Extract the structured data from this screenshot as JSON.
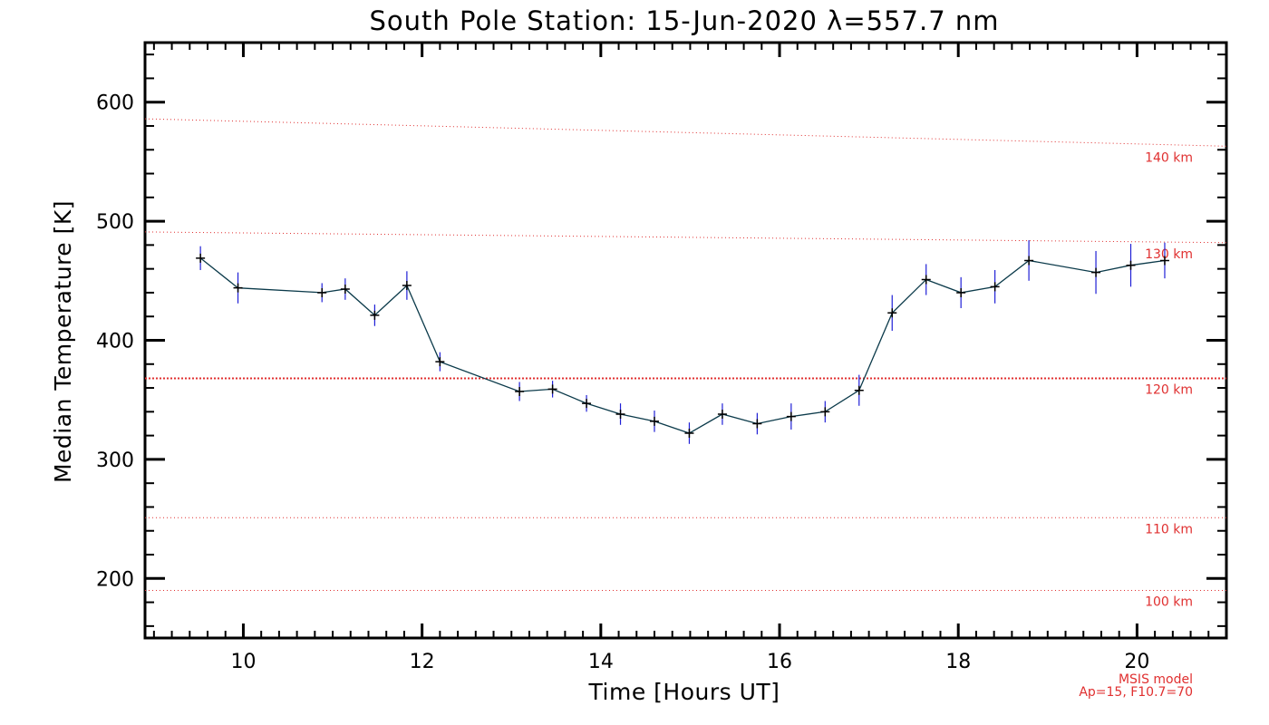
{
  "chart_data": {
    "type": "line",
    "title": "South Pole Station: 15-Jun-2020 λ=557.7 nm",
    "xlabel": "Time [Hours UT]",
    "ylabel": "Median Temperature [K]",
    "xlim": [
      8.9,
      21.0
    ],
    "ylim": [
      150,
      650
    ],
    "xticks": [
      10,
      12,
      14,
      16,
      18,
      20
    ],
    "yticks": [
      200,
      300,
      400,
      500,
      600
    ],
    "grid": false,
    "series": [
      {
        "x": [
          9.52,
          9.94,
          10.88,
          11.14,
          11.47,
          11.83,
          12.2,
          13.09,
          13.46,
          13.84,
          14.22,
          14.6,
          14.99,
          15.36,
          15.75,
          16.13,
          16.51,
          16.89,
          17.26,
          17.64,
          18.03,
          18.41,
          18.79,
          19.54,
          19.93,
          20.31
        ],
        "y": [
          469,
          444,
          440,
          443,
          421,
          446,
          382,
          357,
          359,
          347,
          338,
          332,
          322,
          338,
          330,
          336,
          340,
          358,
          423,
          451,
          440,
          445,
          467,
          457,
          463,
          467
        ],
        "err": [
          10,
          13,
          8,
          9,
          9,
          12,
          8,
          8,
          7,
          7,
          9,
          9,
          9,
          9,
          9,
          11,
          9,
          13,
          15,
          13,
          13,
          14,
          17,
          18,
          18,
          15
        ]
      }
    ],
    "reference_lines": [
      {
        "label": "140 km",
        "y_start": 586,
        "y_end": 563,
        "emphasized": false
      },
      {
        "label": "130 km",
        "y_start": 491,
        "y_end": 482,
        "emphasized": false
      },
      {
        "label": "120 km",
        "y_start": 368,
        "y_end": 368,
        "emphasized": true
      },
      {
        "label": "110 km",
        "y_start": 251,
        "y_end": 251,
        "emphasized": false
      },
      {
        "label": "100 km",
        "y_start": 190,
        "y_end": 190,
        "emphasized": false
      }
    ],
    "annotations": [
      "MSIS model",
      "Ap=15, F10.7=70"
    ],
    "colors": {
      "axes": "#000000",
      "line": "#0b3a4a",
      "errorbar": "#1f1fd6",
      "marker": "#000000",
      "reference": "#e03030"
    }
  }
}
